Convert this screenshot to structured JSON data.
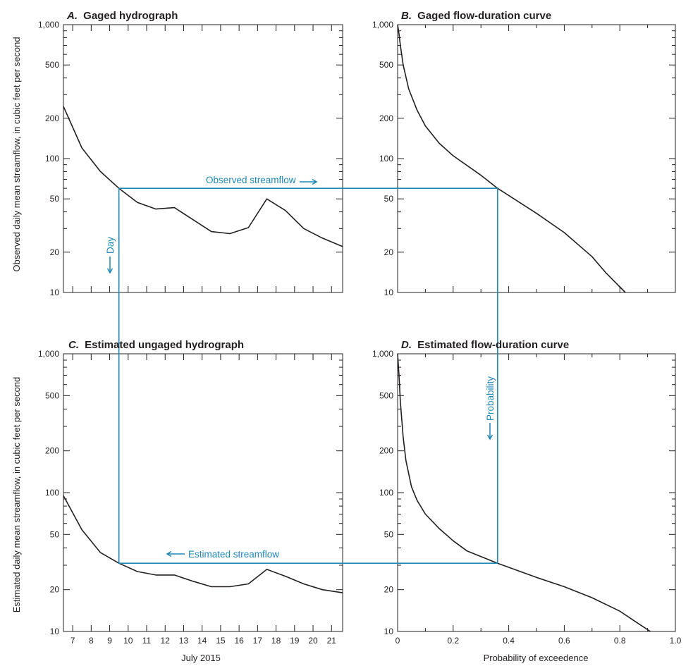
{
  "figure": {
    "y_axis_title_top": "Observed daily mean streamflow, in cubic feet per second",
    "y_axis_title_bottom": "Estimated daily mean streamflow, in cubic feet per second",
    "x_axis_title_left": "July 2015",
    "x_axis_title_right": "Probability of exceedence",
    "annotations": {
      "observed": "Observed streamflow",
      "estimated": "Estimated streamflow",
      "day": "Day",
      "probability": "Probability"
    },
    "guide_color": "#1f87b6",
    "line_color": "#231f20",
    "guide_day": 9.5,
    "guide_probability": 0.36,
    "guide_observed_flow": 60,
    "guide_estimated_flow": 31
  },
  "panels": {
    "A": {
      "letter": "A.",
      "name": "Gaged hydrograph"
    },
    "B": {
      "letter": "B.",
      "name": "Gaged flow-duration curve"
    },
    "C": {
      "letter": "C.",
      "name": "Estimated ungaged hydrograph"
    },
    "D": {
      "letter": "D.",
      "name": "Estimated flow-duration curve"
    }
  },
  "axes": {
    "y_ticks": [
      "10",
      "20",
      "50",
      "100",
      "200",
      "500",
      "1,000"
    ],
    "x_days": [
      "7",
      "8",
      "9",
      "10",
      "11",
      "12",
      "13",
      "14",
      "15",
      "16",
      "17",
      "18",
      "19",
      "20",
      "21"
    ],
    "x_prob": [
      "0",
      "0.2",
      "0.4",
      "0.6",
      "0.8",
      "1.0"
    ]
  },
  "chart_data": [
    {
      "type": "line",
      "panel": "A",
      "title": "A. Gaged hydrograph",
      "xlabel": "",
      "ylabel": "Observed daily mean streamflow, in cubic feet per second",
      "yscale": "log",
      "xlim": [
        6.5,
        21.6
      ],
      "ylim": [
        10,
        1000
      ],
      "x": [
        6.5,
        7.5,
        8.5,
        9.5,
        10.5,
        11.5,
        12.5,
        13.5,
        14.5,
        15.5,
        16.5,
        17.5,
        18.5,
        19.5,
        20.5,
        21.6
      ],
      "y": [
        245,
        120,
        80,
        60,
        47,
        42,
        43,
        35,
        28.5,
        27.5,
        30.5,
        50,
        41,
        30,
        25.5,
        22
      ]
    },
    {
      "type": "line",
      "panel": "B",
      "title": "B. Gaged flow-duration curve",
      "xlabel": "",
      "ylabel": "",
      "yscale": "log",
      "xlim": [
        0,
        1.0
      ],
      "ylim": [
        10,
        1000
      ],
      "x": [
        0.0,
        0.005,
        0.01,
        0.02,
        0.04,
        0.07,
        0.1,
        0.15,
        0.2,
        0.3,
        0.36,
        0.5,
        0.6,
        0.7,
        0.75,
        0.82
      ],
      "y": [
        1000,
        850,
        700,
        500,
        330,
        230,
        175,
        130,
        105,
        75,
        60,
        39,
        28,
        18.5,
        14,
        10
      ]
    },
    {
      "type": "line",
      "panel": "C",
      "title": "C. Estimated ungaged hydrograph",
      "xlabel": "July 2015",
      "ylabel": "Estimated daily mean streamflow, in cubic feet per second",
      "yscale": "log",
      "xlim": [
        6.5,
        21.6
      ],
      "ylim": [
        10,
        1000
      ],
      "x": [
        6.5,
        7.5,
        8.5,
        9.5,
        10.5,
        11.5,
        12.5,
        13.5,
        14.5,
        15.5,
        16.5,
        17.5,
        18.5,
        19.5,
        20.5,
        21.6
      ],
      "y": [
        95,
        54,
        37,
        31,
        27,
        25.5,
        25.5,
        23,
        21,
        21,
        22,
        28,
        25,
        22,
        20,
        19
      ]
    },
    {
      "type": "line",
      "panel": "D",
      "title": "D. Estimated flow-duration curve",
      "xlabel": "Probability of exceedence",
      "ylabel": "",
      "yscale": "log",
      "xlim": [
        0,
        1.0
      ],
      "ylim": [
        10,
        1000
      ],
      "x": [
        0.0,
        0.005,
        0.01,
        0.02,
        0.03,
        0.05,
        0.07,
        0.1,
        0.15,
        0.2,
        0.25,
        0.36,
        0.5,
        0.6,
        0.7,
        0.8,
        0.85,
        0.91
      ],
      "y": [
        1000,
        700,
        450,
        250,
        170,
        110,
        88,
        70,
        55,
        45,
        38,
        31,
        24.5,
        21,
        17.5,
        14,
        12,
        10
      ]
    }
  ]
}
